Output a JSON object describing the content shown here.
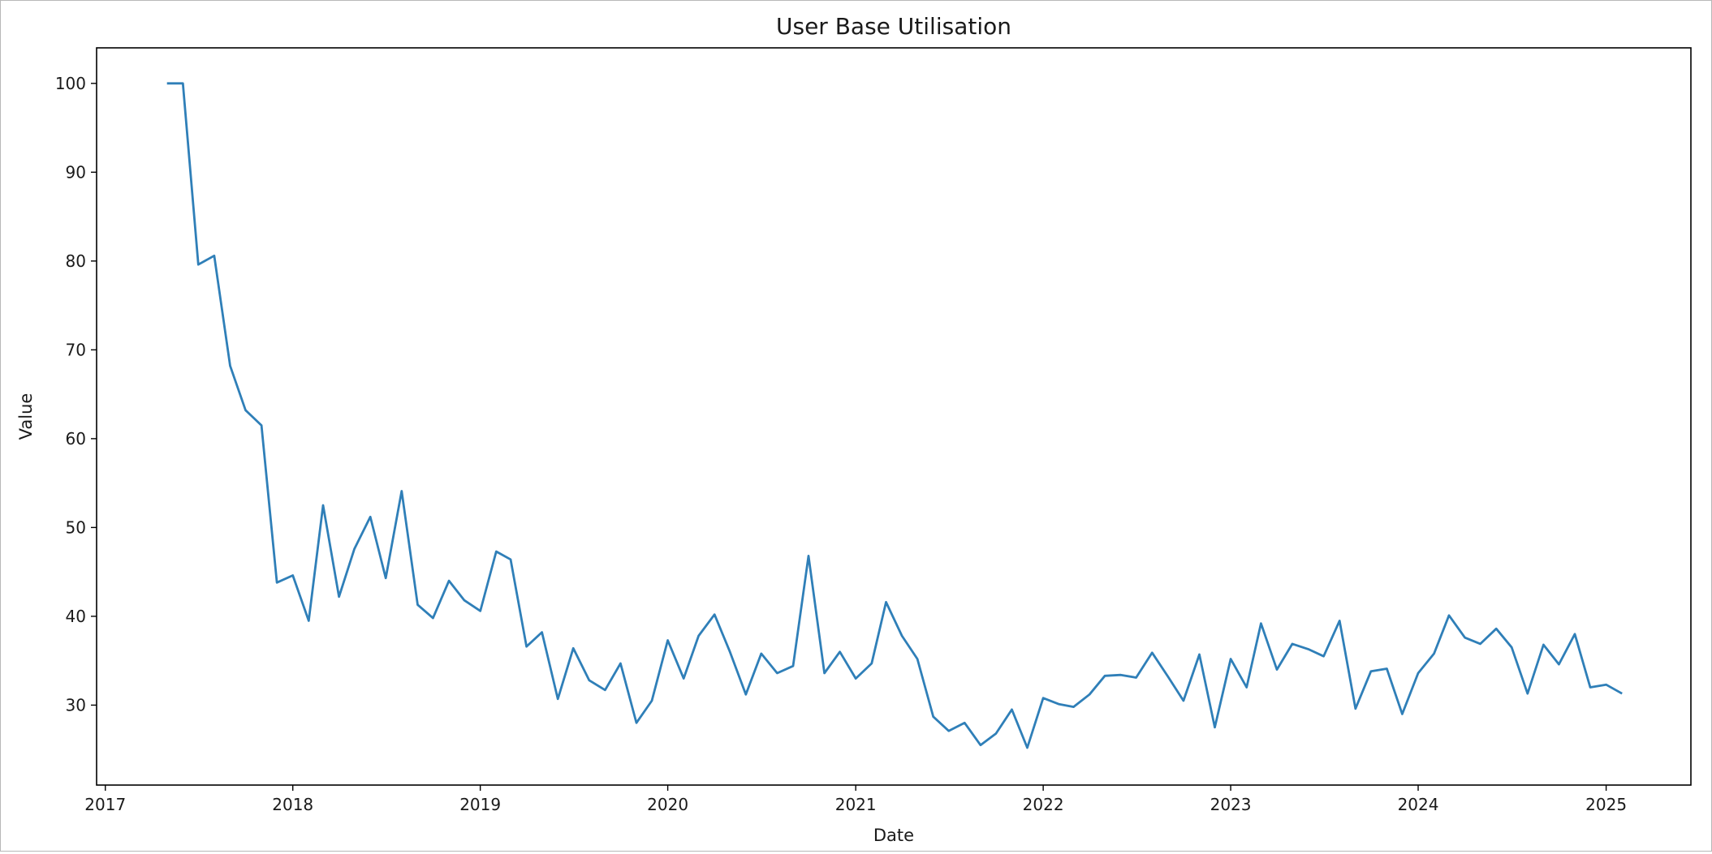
{
  "chart_data": {
    "type": "line",
    "title": "User Base Utilisation",
    "xlabel": "Date",
    "ylabel": "Value",
    "x_ticks": [
      "2017",
      "2018",
      "2019",
      "2020",
      "2021",
      "2022",
      "2023",
      "2024",
      "2025"
    ],
    "y_ticks": [
      30,
      40,
      50,
      60,
      70,
      80,
      90,
      100
    ],
    "xlim": [
      "2016-12-15",
      "2025-06-15"
    ],
    "ylim": [
      21,
      104
    ],
    "grid": false,
    "line_color": "#2f7fb8",
    "series": [
      {
        "x": [
          "2017-05-01",
          "2017-06-01",
          "2017-07-01",
          "2017-08-01",
          "2017-09-01",
          "2017-10-01",
          "2017-11-01",
          "2017-12-01",
          "2018-01-01",
          "2018-02-01",
          "2018-03-01",
          "2018-04-01",
          "2018-05-01",
          "2018-06-01",
          "2018-07-01",
          "2018-08-01",
          "2018-09-01",
          "2018-10-01",
          "2018-11-01",
          "2018-12-01",
          "2019-01-01",
          "2019-02-01",
          "2019-03-01",
          "2019-04-01",
          "2019-05-01",
          "2019-06-01",
          "2019-07-01",
          "2019-08-01",
          "2019-09-01",
          "2019-10-01",
          "2019-11-01",
          "2019-12-01",
          "2020-01-01",
          "2020-02-01",
          "2020-03-01",
          "2020-04-01",
          "2020-05-01",
          "2020-06-01",
          "2020-07-01",
          "2020-08-01",
          "2020-09-01",
          "2020-10-01",
          "2020-11-01",
          "2020-12-01",
          "2021-01-01",
          "2021-02-01",
          "2021-03-01",
          "2021-04-01",
          "2021-05-01",
          "2021-06-01",
          "2021-07-01",
          "2021-08-01",
          "2021-09-01",
          "2021-10-01",
          "2021-11-01",
          "2021-12-01",
          "2022-01-01",
          "2022-02-01",
          "2022-03-01",
          "2022-04-01",
          "2022-05-01",
          "2022-06-01",
          "2022-07-01",
          "2022-08-01",
          "2022-09-01",
          "2022-10-01",
          "2022-11-01",
          "2022-12-01",
          "2023-01-01",
          "2023-02-01",
          "2023-03-01",
          "2023-04-01",
          "2023-05-01",
          "2023-06-01",
          "2023-07-01",
          "2023-08-01",
          "2023-09-01",
          "2023-10-01",
          "2023-11-01",
          "2023-12-01",
          "2024-01-01",
          "2024-02-01",
          "2024-03-01",
          "2024-04-01",
          "2024-05-01",
          "2024-06-01",
          "2024-07-01",
          "2024-08-01",
          "2024-09-01",
          "2024-10-01",
          "2024-11-01",
          "2024-12-01",
          "2025-01-01",
          "2025-02-01"
        ],
        "values": [
          100.0,
          100.0,
          79.6,
          80.6,
          68.2,
          63.2,
          61.5,
          43.8,
          44.6,
          39.5,
          52.5,
          42.2,
          47.6,
          51.2,
          44.3,
          54.1,
          41.3,
          39.8,
          44.0,
          41.8,
          40.6,
          47.3,
          46.4,
          36.6,
          38.2,
          30.7,
          36.4,
          32.8,
          31.7,
          34.7,
          28.0,
          30.5,
          37.3,
          33.0,
          37.8,
          40.2,
          36.0,
          31.2,
          35.8,
          33.6,
          34.4,
          46.8,
          33.6,
          36.0,
          33.0,
          34.7,
          41.6,
          37.8,
          35.2,
          28.7,
          27.1,
          28.0,
          25.5,
          26.8,
          29.5,
          25.2,
          30.8,
          30.1,
          29.8,
          31.2,
          33.3,
          33.4,
          33.1,
          35.9,
          33.2,
          30.5,
          35.7,
          27.5,
          35.2,
          32.0,
          39.2,
          34.0,
          36.9,
          36.3,
          35.5,
          39.5,
          29.6,
          33.8,
          34.1,
          29.0,
          33.6,
          35.8,
          40.1,
          37.6,
          36.9,
          38.6,
          36.5,
          31.3,
          36.8,
          34.6,
          38.0,
          32.0,
          32.3,
          31.3
        ]
      }
    ]
  }
}
